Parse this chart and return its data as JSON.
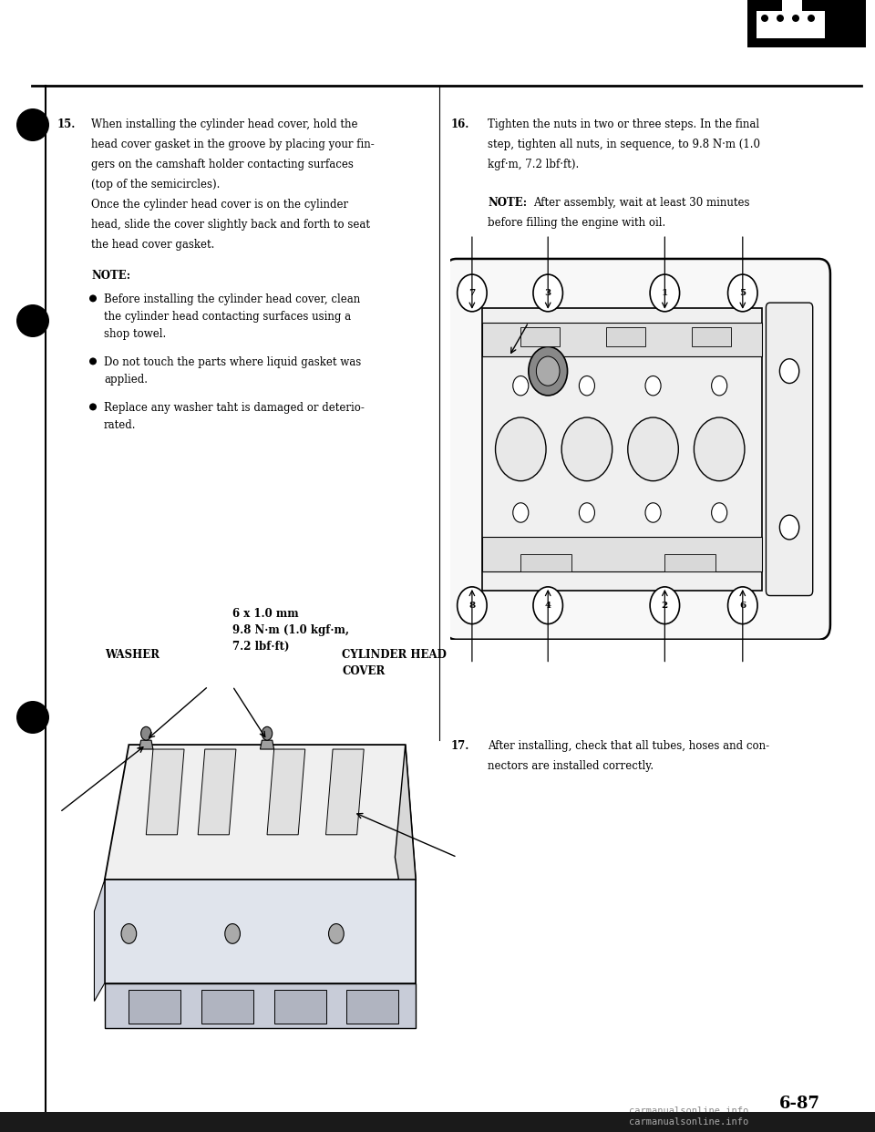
{
  "bg_color": "#ffffff",
  "page_number": "6-87",
  "watermark": "carmanualsonline.info",
  "section15_lines": [
    "When installing the cylinder head cover, hold the",
    "head cover gasket in the groove by placing your fin-",
    "gers on the camshaft holder contacting surfaces",
    "(top of the semicircles).",
    "Once the cylinder head cover is on the cylinder",
    "head, slide the cover slightly back and forth to seat",
    "the head cover gasket."
  ],
  "note_label": "NOTE:",
  "bullet_items": [
    [
      "Before installing the cylinder head cover, clean",
      "the cylinder head contacting surfaces using a",
      "shop towel."
    ],
    [
      "Do not touch the parts where liquid gasket was",
      "applied."
    ],
    [
      "Replace any washer taht is damaged or deterio-",
      "rated."
    ]
  ],
  "spec_lines": [
    "6 x 1.0 mm",
    "9.8 N·m (1.0 kgf·m,",
    "7.2 lbf·ft)"
  ],
  "washer_label": "WASHER",
  "cylinder_labels": [
    "CYLINDER HEAD",
    "COVER"
  ],
  "section16_lines": [
    "Tighten the nuts in two or three steps. In the final",
    "step, tighten all nuts, in sequence, to 9.8 N·m (1.0",
    "kgf·m, 7.2 lbf·ft)."
  ],
  "note16_lines": [
    "NOTE:  After assembly, wait at least 30 minutes",
    "before filling the engine with oil."
  ],
  "section17_lines": [
    "After installing, check that all tubes, hoses and con-",
    "nectors are installed correctly."
  ],
  "font_size": 8.5,
  "font_family": "DejaVu Serif"
}
